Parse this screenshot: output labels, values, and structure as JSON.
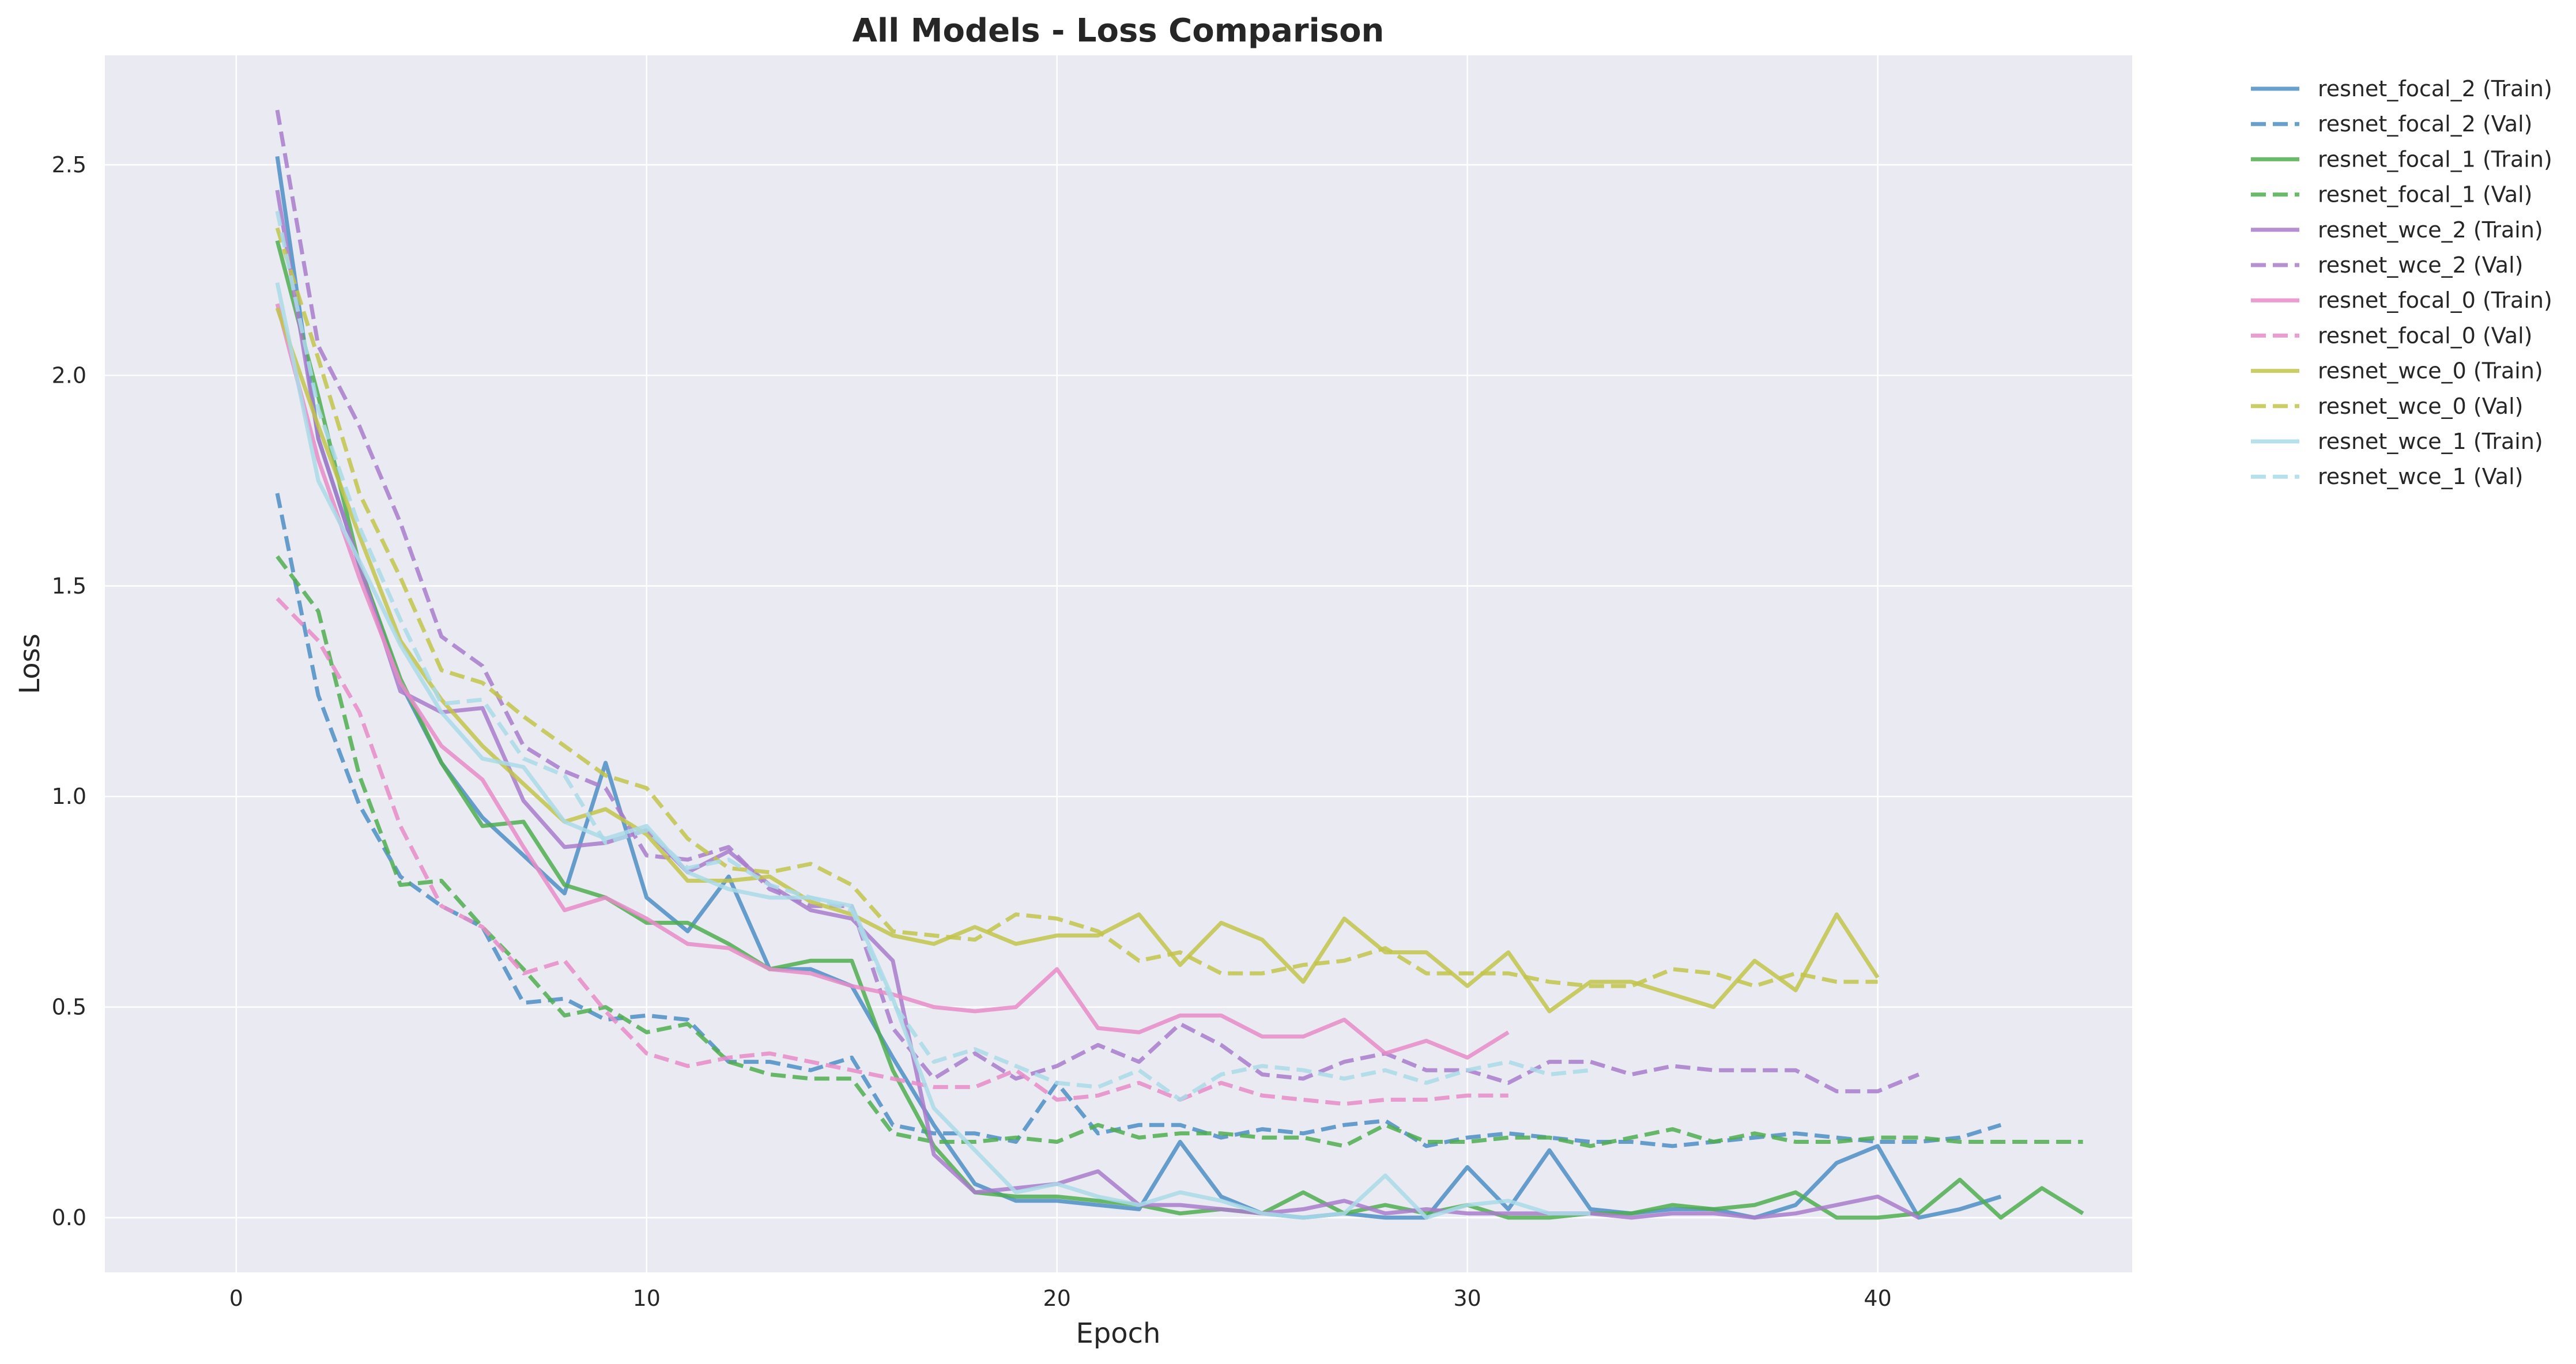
{
  "chart_data": {
    "type": "line",
    "title": "All Models - Loss Comparison",
    "xlabel": "Epoch",
    "ylabel": "Loss",
    "xlim": [
      -3.2,
      46.2
    ],
    "ylim": [
      -0.13,
      2.76
    ],
    "xticks": [
      0,
      10,
      20,
      30,
      40
    ],
    "yticks": [
      0.0,
      0.5,
      1.0,
      1.5,
      2.0,
      2.5
    ],
    "ytick_labels": [
      "0.0",
      "0.5",
      "1.0",
      "1.5",
      "2.0",
      "2.5"
    ],
    "grid": true,
    "legend_position": "outside-top-right",
    "series": [
      {
        "name": "resnet_focal_2 (Train)",
        "color": "#4c8fc4",
        "dash": false,
        "values": [
          2.52,
          1.85,
          1.55,
          1.27,
          1.08,
          0.95,
          0.86,
          0.77,
          1.08,
          0.76,
          0.68,
          0.81,
          0.59,
          0.59,
          0.55,
          0.38,
          0.22,
          0.08,
          0.04,
          0.04,
          0.03,
          0.02,
          0.18,
          0.05,
          0.01,
          0.0,
          0.01,
          0.0,
          0.0,
          0.12,
          0.02,
          0.16,
          0.02,
          0.01,
          0.02,
          0.02,
          0.0,
          0.03,
          0.13,
          0.17,
          0.0,
          0.02,
          0.05
        ]
      },
      {
        "name": "resnet_focal_2 (Val)",
        "color": "#4c8fc4",
        "dash": true,
        "values": [
          1.72,
          1.24,
          0.98,
          0.81,
          0.74,
          0.69,
          0.51,
          0.52,
          0.47,
          0.48,
          0.47,
          0.37,
          0.37,
          0.35,
          0.38,
          0.22,
          0.2,
          0.2,
          0.18,
          0.32,
          0.2,
          0.22,
          0.22,
          0.19,
          0.21,
          0.2,
          0.22,
          0.23,
          0.17,
          0.19,
          0.2,
          0.19,
          0.18,
          0.18,
          0.17,
          0.18,
          0.19,
          0.2,
          0.19,
          0.18,
          0.18,
          0.19,
          0.22
        ]
      },
      {
        "name": "resnet_focal_1 (Train)",
        "color": "#4fae4f",
        "dash": false,
        "values": [
          2.32,
          1.95,
          1.55,
          1.28,
          1.08,
          0.93,
          0.94,
          0.79,
          0.76,
          0.7,
          0.7,
          0.65,
          0.59,
          0.61,
          0.61,
          0.35,
          0.17,
          0.06,
          0.05,
          0.05,
          0.04,
          0.03,
          0.01,
          0.02,
          0.01,
          0.06,
          0.01,
          0.03,
          0.01,
          0.03,
          0.0,
          0.0,
          0.01,
          0.01,
          0.03,
          0.02,
          0.03,
          0.06,
          0.0,
          0.0,
          0.01,
          0.09,
          0.0,
          0.07,
          0.01
        ]
      },
      {
        "name": "resnet_focal_1 (Val)",
        "color": "#4fae4f",
        "dash": true,
        "values": [
          1.57,
          1.44,
          1.05,
          0.79,
          0.8,
          0.69,
          0.59,
          0.48,
          0.5,
          0.44,
          0.46,
          0.37,
          0.34,
          0.33,
          0.33,
          0.2,
          0.18,
          0.18,
          0.19,
          0.18,
          0.22,
          0.19,
          0.2,
          0.2,
          0.19,
          0.19,
          0.17,
          0.22,
          0.18,
          0.18,
          0.19,
          0.19,
          0.17,
          0.19,
          0.21,
          0.18,
          0.2,
          0.18,
          0.18,
          0.19,
          0.19,
          0.18,
          0.18,
          0.18,
          0.18
        ]
      },
      {
        "name": "resnet_wce_2 (Train)",
        "color": "#a97dcb",
        "dash": false,
        "values": [
          2.44,
          1.85,
          1.55,
          1.25,
          1.2,
          1.21,
          0.99,
          0.88,
          0.89,
          0.92,
          0.82,
          0.87,
          0.79,
          0.73,
          0.71,
          0.61,
          0.15,
          0.06,
          0.07,
          0.08,
          0.11,
          0.03,
          0.03,
          0.02,
          0.01,
          0.02,
          0.04,
          0.01,
          0.02,
          0.01,
          0.01,
          0.01,
          0.01,
          0.0,
          0.01,
          0.01,
          0.0,
          0.01,
          0.03,
          0.05,
          0.0
        ]
      },
      {
        "name": "resnet_wce_2 (Val)",
        "color": "#a97dcb",
        "dash": true,
        "values": [
          2.63,
          2.07,
          1.88,
          1.65,
          1.38,
          1.31,
          1.12,
          1.06,
          1.02,
          0.86,
          0.85,
          0.88,
          0.78,
          0.74,
          0.74,
          0.45,
          0.33,
          0.39,
          0.33,
          0.36,
          0.41,
          0.37,
          0.46,
          0.41,
          0.34,
          0.33,
          0.37,
          0.39,
          0.35,
          0.35,
          0.32,
          0.37,
          0.37,
          0.34,
          0.36,
          0.35,
          0.35,
          0.35,
          0.3,
          0.3,
          0.34
        ]
      },
      {
        "name": "resnet_focal_0 (Train)",
        "color": "#e88cc8",
        "dash": false,
        "values": [
          2.17,
          1.8,
          1.52,
          1.27,
          1.12,
          1.04,
          0.88,
          0.73,
          0.76,
          0.71,
          0.65,
          0.64,
          0.59,
          0.58,
          0.55,
          0.53,
          0.5,
          0.49,
          0.5,
          0.59,
          0.45,
          0.44,
          0.48,
          0.48,
          0.43,
          0.43,
          0.47,
          0.39,
          0.42,
          0.38,
          0.44
        ]
      },
      {
        "name": "resnet_focal_0 (Val)",
        "color": "#e88cc8",
        "dash": true,
        "values": [
          1.47,
          1.37,
          1.2,
          0.93,
          0.74,
          0.69,
          0.58,
          0.61,
          0.49,
          0.39,
          0.36,
          0.38,
          0.39,
          0.37,
          0.35,
          0.33,
          0.31,
          0.31,
          0.35,
          0.28,
          0.29,
          0.32,
          0.28,
          0.32,
          0.29,
          0.28,
          0.27,
          0.28,
          0.28,
          0.29,
          0.29
        ]
      },
      {
        "name": "resnet_wce_0 (Train)",
        "color": "#c2c44a",
        "dash": false,
        "values": [
          2.16,
          1.88,
          1.62,
          1.37,
          1.23,
          1.12,
          1.03,
          0.94,
          0.97,
          0.91,
          0.8,
          0.8,
          0.81,
          0.75,
          0.72,
          0.67,
          0.65,
          0.69,
          0.65,
          0.67,
          0.67,
          0.72,
          0.6,
          0.7,
          0.66,
          0.56,
          0.71,
          0.63,
          0.63,
          0.55,
          0.63,
          0.49,
          0.56,
          0.56,
          0.53,
          0.5,
          0.61,
          0.54,
          0.72,
          0.57
        ]
      },
      {
        "name": "resnet_wce_0 (Val)",
        "color": "#c2c44a",
        "dash": true,
        "values": [
          2.35,
          2.04,
          1.72,
          1.52,
          1.3,
          1.27,
          1.19,
          1.12,
          1.05,
          1.02,
          0.9,
          0.83,
          0.82,
          0.84,
          0.79,
          0.68,
          0.67,
          0.66,
          0.72,
          0.71,
          0.68,
          0.61,
          0.63,
          0.58,
          0.58,
          0.6,
          0.61,
          0.64,
          0.58,
          0.58,
          0.58,
          0.56,
          0.55,
          0.55,
          0.59,
          0.58,
          0.55,
          0.58,
          0.56,
          0.56
        ]
      },
      {
        "name": "resnet_wce_1 (Train)",
        "color": "#a9dbe8",
        "dash": false,
        "values": [
          2.22,
          1.75,
          1.56,
          1.36,
          1.2,
          1.09,
          1.07,
          0.94,
          0.9,
          0.93,
          0.82,
          0.78,
          0.76,
          0.76,
          0.74,
          0.52,
          0.26,
          0.16,
          0.06,
          0.08,
          0.05,
          0.03,
          0.06,
          0.04,
          0.01,
          0.0,
          0.01,
          0.1,
          0.0,
          0.03,
          0.04,
          0.01,
          0.01
        ]
      },
      {
        "name": "resnet_wce_1 (Val)",
        "color": "#a9dbe8",
        "dash": true,
        "values": [
          2.39,
          1.92,
          1.64,
          1.42,
          1.22,
          1.23,
          1.09,
          1.05,
          0.89,
          0.92,
          0.83,
          0.85,
          0.79,
          0.76,
          0.73,
          0.51,
          0.37,
          0.4,
          0.36,
          0.32,
          0.31,
          0.35,
          0.28,
          0.34,
          0.36,
          0.35,
          0.33,
          0.35,
          0.32,
          0.35,
          0.37,
          0.34,
          0.35
        ]
      }
    ]
  }
}
